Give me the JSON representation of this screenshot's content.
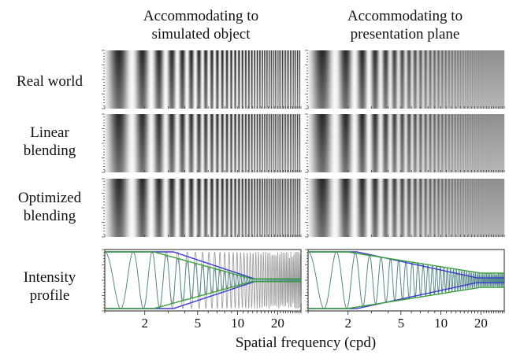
{
  "chart_data": {
    "type": "line",
    "columns": [
      {
        "title_line1": "Accommodating to",
        "title_line2": "simulated object"
      },
      {
        "title_line1": "Accommodating to",
        "title_line2": "presentation plane"
      }
    ],
    "rows": [
      {
        "label_line1": "Real world",
        "label_line2": ""
      },
      {
        "label_line1": "Linear",
        "label_line2": "blending"
      },
      {
        "label_line1": "Optimized",
        "label_line2": "blending"
      },
      {
        "label_line1": "Intensity",
        "label_line2": "profile"
      }
    ],
    "xlabel": "Spatial frequency (cpd)",
    "xscale": "log",
    "xlim": [
      1,
      30
    ],
    "xticks": [
      2,
      5,
      10,
      20
    ],
    "series": [
      {
        "color": "#3a3ad0"
      },
      {
        "color": "#3aa03a"
      },
      {
        "color": "#909090"
      }
    ]
  }
}
